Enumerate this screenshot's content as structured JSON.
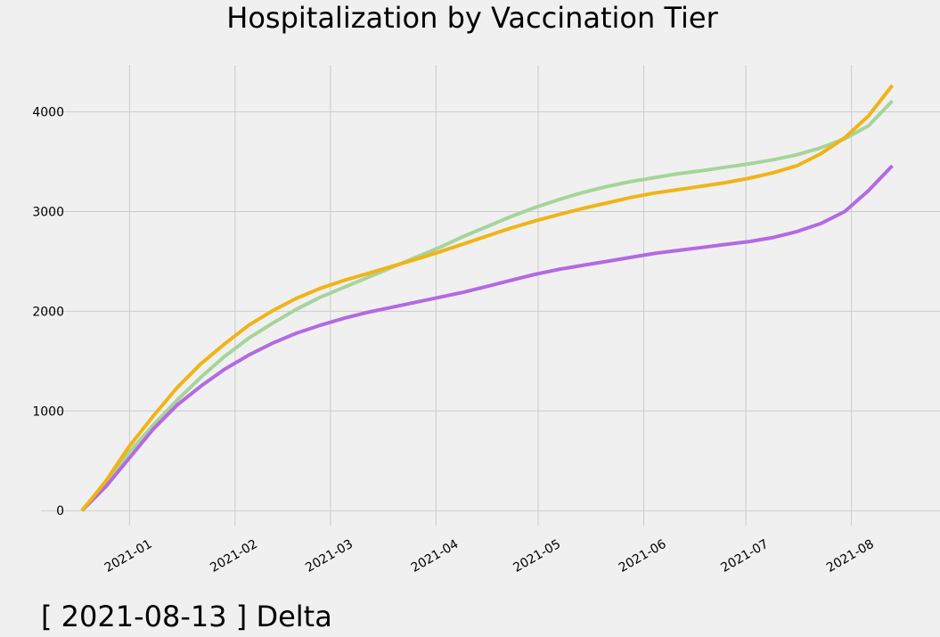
{
  "chart_data": {
    "type": "line",
    "title": "Hospitalization by Vaccination Tier",
    "annotation": "[ 2021-08-13 ] Delta",
    "x": [
      "2020-12-18",
      "2020-12-25",
      "2021-01-01",
      "2021-01-08",
      "2021-01-15",
      "2021-01-22",
      "2021-01-29",
      "2021-02-05",
      "2021-02-12",
      "2021-02-19",
      "2021-02-26",
      "2021-03-05",
      "2021-03-12",
      "2021-03-19",
      "2021-03-26",
      "2021-04-02",
      "2021-04-09",
      "2021-04-16",
      "2021-04-23",
      "2021-04-30",
      "2021-05-07",
      "2021-05-14",
      "2021-05-21",
      "2021-05-28",
      "2021-06-04",
      "2021-06-11",
      "2021-06-18",
      "2021-06-25",
      "2021-07-02",
      "2021-07-09",
      "2021-07-16",
      "2021-07-23",
      "2021-07-30",
      "2021-08-06",
      "2021-08-13"
    ],
    "series": [
      {
        "color": "#a6d49a",
        "values": [
          0,
          280,
          590,
          860,
          1110,
          1340,
          1550,
          1730,
          1880,
          2020,
          2140,
          2240,
          2340,
          2440,
          2540,
          2640,
          2750,
          2850,
          2950,
          3040,
          3120,
          3190,
          3250,
          3300,
          3340,
          3380,
          3410,
          3445,
          3480,
          3520,
          3570,
          3640,
          3730,
          3860,
          4110
        ]
      },
      {
        "color": "#b36ae2",
        "values": [
          0,
          240,
          530,
          820,
          1060,
          1250,
          1420,
          1560,
          1680,
          1780,
          1860,
          1930,
          1990,
          2040,
          2090,
          2140,
          2190,
          2250,
          2310,
          2370,
          2420,
          2460,
          2500,
          2540,
          2580,
          2610,
          2640,
          2670,
          2700,
          2740,
          2800,
          2880,
          3000,
          3210,
          3460
        ]
      },
      {
        "color": "#f0b418",
        "values": [
          0,
          295,
          650,
          950,
          1235,
          1475,
          1675,
          1860,
          2005,
          2130,
          2230,
          2310,
          2380,
          2450,
          2520,
          2595,
          2675,
          2755,
          2835,
          2905,
          2970,
          3030,
          3085,
          3140,
          3185,
          3220,
          3255,
          3290,
          3335,
          3390,
          3460,
          3580,
          3740,
          3960,
          4265
        ]
      }
    ],
    "xlim": [
      "2020-12-06",
      "2021-08-27"
    ],
    "xticks": [
      "2021-01",
      "2021-02",
      "2021-03",
      "2021-04",
      "2021-05",
      "2021-06",
      "2021-07",
      "2021-08"
    ],
    "ylim": [
      -150,
      4470
    ],
    "yticks": [
      0,
      1000,
      2000,
      3000,
      4000
    ],
    "grid": true
  }
}
